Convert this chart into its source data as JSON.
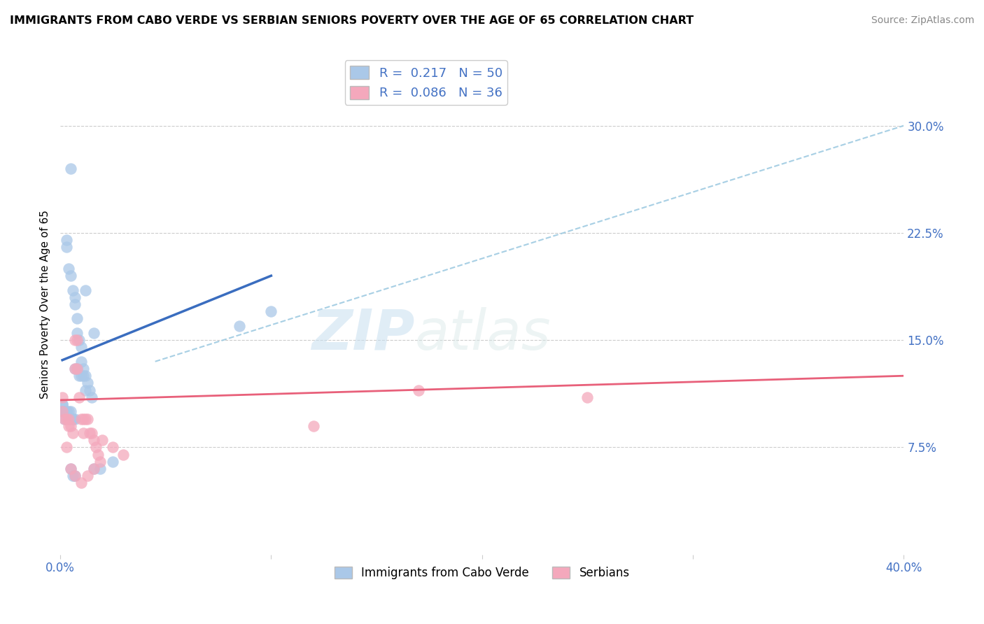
{
  "title": "IMMIGRANTS FROM CABO VERDE VS SERBIAN SENIORS POVERTY OVER THE AGE OF 65 CORRELATION CHART",
  "source": "Source: ZipAtlas.com",
  "ylabel": "Seniors Poverty Over the Age of 65",
  "right_yticks": [
    "7.5%",
    "15.0%",
    "22.5%",
    "30.0%"
  ],
  "right_ytick_vals": [
    0.075,
    0.15,
    0.225,
    0.3
  ],
  "blue_R": 0.217,
  "blue_N": 50,
  "pink_R": 0.086,
  "pink_N": 36,
  "blue_color": "#aac8e8",
  "pink_color": "#f4a8bc",
  "blue_line_color": "#3a6dbf",
  "pink_line_color": "#e8607a",
  "dashed_line_color": "#9ecae1",
  "watermark_zip": "ZIP",
  "watermark_atlas": "atlas",
  "xlim": [
    0.0,
    0.4
  ],
  "ylim": [
    0.0,
    0.35
  ],
  "blue_scatter_x": [
    0.005,
    0.012,
    0.003,
    0.003,
    0.004,
    0.005,
    0.006,
    0.007,
    0.007,
    0.008,
    0.008,
    0.009,
    0.01,
    0.01,
    0.011,
    0.012,
    0.013,
    0.014,
    0.015,
    0.016,
    0.001,
    0.001,
    0.002,
    0.002,
    0.003,
    0.004,
    0.005,
    0.006,
    0.006,
    0.007,
    0.001,
    0.001,
    0.002,
    0.003,
    0.004,
    0.005,
    0.007,
    0.008,
    0.009,
    0.01,
    0.011,
    0.012,
    0.005,
    0.006,
    0.007,
    0.016,
    0.019,
    0.025,
    0.085,
    0.1
  ],
  "blue_scatter_y": [
    0.27,
    0.185,
    0.22,
    0.215,
    0.2,
    0.195,
    0.185,
    0.18,
    0.175,
    0.165,
    0.155,
    0.15,
    0.145,
    0.135,
    0.125,
    0.115,
    0.12,
    0.115,
    0.11,
    0.155,
    0.105,
    0.1,
    0.1,
    0.095,
    0.1,
    0.095,
    0.1,
    0.095,
    0.095,
    0.095,
    0.105,
    0.1,
    0.1,
    0.1,
    0.1,
    0.095,
    0.13,
    0.13,
    0.125,
    0.125,
    0.13,
    0.125,
    0.06,
    0.055,
    0.055,
    0.06,
    0.06,
    0.065,
    0.16,
    0.17
  ],
  "pink_scatter_x": [
    0.001,
    0.001,
    0.002,
    0.003,
    0.004,
    0.004,
    0.005,
    0.006,
    0.007,
    0.007,
    0.008,
    0.008,
    0.009,
    0.01,
    0.011,
    0.011,
    0.012,
    0.013,
    0.014,
    0.015,
    0.016,
    0.017,
    0.018,
    0.019,
    0.003,
    0.005,
    0.007,
    0.01,
    0.013,
    0.016,
    0.12,
    0.17,
    0.25,
    0.02,
    0.025,
    0.03
  ],
  "pink_scatter_y": [
    0.11,
    0.1,
    0.095,
    0.095,
    0.095,
    0.09,
    0.09,
    0.085,
    0.15,
    0.13,
    0.15,
    0.13,
    0.11,
    0.095,
    0.095,
    0.085,
    0.095,
    0.095,
    0.085,
    0.085,
    0.08,
    0.075,
    0.07,
    0.065,
    0.075,
    0.06,
    0.055,
    0.05,
    0.055,
    0.06,
    0.09,
    0.115,
    0.11,
    0.08,
    0.075,
    0.07
  ],
  "blue_line_x": [
    0.001,
    0.1
  ],
  "blue_line_y": [
    0.136,
    0.195
  ],
  "pink_line_x": [
    0.0,
    0.4
  ],
  "pink_line_y": [
    0.108,
    0.125
  ],
  "dash_line_x": [
    0.045,
    0.4
  ],
  "dash_line_y": [
    0.135,
    0.3
  ]
}
